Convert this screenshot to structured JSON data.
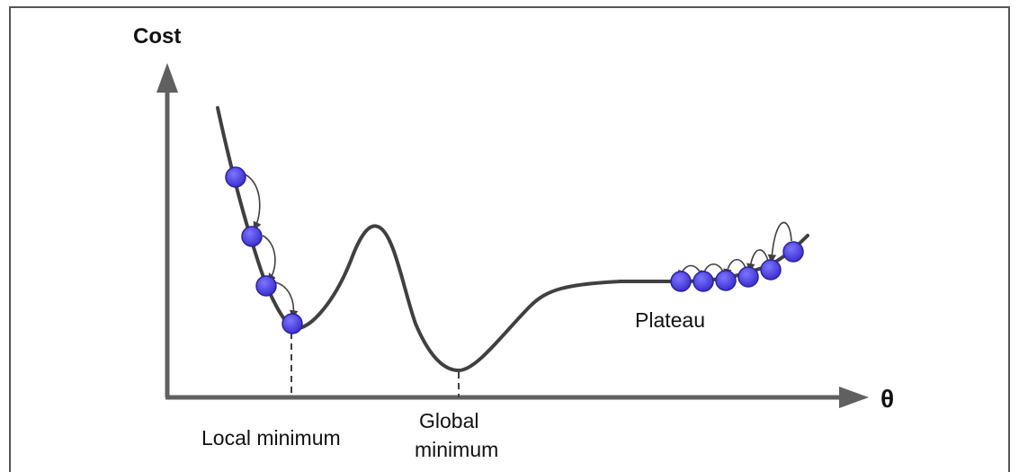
{
  "axes": {
    "y_label": "Cost",
    "x_label": "θ"
  },
  "annotations": {
    "local_minimum": "Local minimum",
    "global_minimum_line1": "Global",
    "global_minimum_line2": "minimum",
    "plateau": "Plateau"
  },
  "colors": {
    "curve": "#404040",
    "axis": "#606060",
    "ball": "#4a3fe0",
    "ball_edge": "#2a2399",
    "frame": "#555555"
  }
}
